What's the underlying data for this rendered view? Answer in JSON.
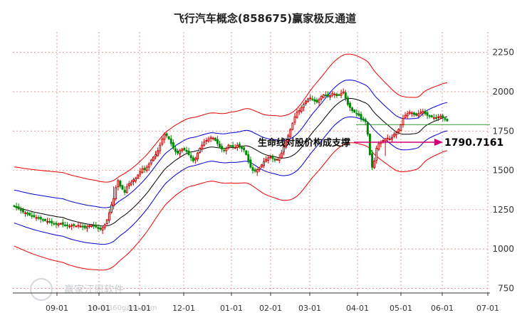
{
  "chart_data": {
    "type": "candlestick",
    "title": "飞行汽车概念(858675)赢家极反通道",
    "y_ticks": [
      2250,
      2000,
      1750,
      1500,
      1250,
      1000,
      750
    ],
    "ylim": [
      720,
      2380
    ],
    "x_ticks": [
      "09-01",
      "10-01",
      "11-01",
      "12-01",
      "01-01",
      "02-01",
      "03-01",
      "04-01",
      "05-01",
      "06-01",
      "07-01"
    ],
    "grid": "dashed",
    "annotation": {
      "text": "生命线对股价构成支撑",
      "value_label": "1790.7161",
      "value": 1790.7161
    },
    "series": [
      {
        "key": "close",
        "color": "#d00000",
        "down_color": "#008800",
        "values": [
          1270,
          1262,
          1255,
          1245,
          1235,
          1230,
          1222,
          1215,
          1210,
          1205,
          1200,
          1195,
          1190,
          1185,
          1180,
          1175,
          1170,
          1165,
          1160,
          1158,
          1160,
          1162,
          1155,
          1150,
          1148,
          1145,
          1150,
          1148,
          1145,
          1150,
          1145,
          1140,
          1135,
          1142,
          1148,
          1150,
          1145,
          1140,
          1130,
          1125,
          1135,
          1155,
          1185,
          1230,
          1280,
          1320,
          1390,
          1435,
          1400,
          1380,
          1360,
          1395,
          1415,
          1425,
          1440,
          1450,
          1470,
          1490,
          1510,
          1505,
          1520,
          1540,
          1565,
          1585,
          1600,
          1625,
          1660,
          1700,
          1730,
          1720,
          1700,
          1670,
          1640,
          1620,
          1610,
          1625,
          1635,
          1630,
          1620,
          1600,
          1580,
          1560,
          1575,
          1610,
          1640,
          1660,
          1680,
          1690,
          1700,
          1710,
          1705,
          1690,
          1670,
          1650,
          1635,
          1625,
          1640,
          1660,
          1655,
          1650,
          1645,
          1660,
          1650,
          1640,
          1630,
          1600,
          1560,
          1520,
          1500,
          1495,
          1505,
          1515,
          1535,
          1555,
          1570,
          1580,
          1585,
          1575,
          1565,
          1570,
          1580,
          1610,
          1650,
          1690,
          1720,
          1760,
          1800,
          1840,
          1870,
          1880,
          1900,
          1920,
          1940,
          1955,
          1960,
          1950,
          1940,
          1935,
          1950,
          1970,
          1980,
          1975,
          1970,
          1975,
          1990,
          1985,
          1975,
          1980,
          1990,
          2000,
          1960,
          1920,
          1900,
          1880,
          1870,
          1860,
          1850,
          1830,
          1820,
          1810,
          1730,
          1600,
          1520,
          1560,
          1640,
          1670,
          1680,
          1690,
          1700,
          1705,
          1700,
          1710,
          1730,
          1740,
          1760,
          1790,
          1830,
          1850,
          1860,
          1870,
          1865,
          1855,
          1850,
          1860,
          1870,
          1875,
          1860,
          1850,
          1845,
          1840,
          1835,
          1830,
          1840,
          1845,
          1835,
          1825,
          1815
        ]
      },
      {
        "key": "lifeline",
        "color": "#000000"
      },
      {
        "key": "inner_upper",
        "color": "#0000dd"
      },
      {
        "key": "inner_lower",
        "color": "#0000dd"
      },
      {
        "key": "outer_upper",
        "color": "#ee0000"
      },
      {
        "key": "outer_lower",
        "color": "#ee0000"
      }
    ],
    "colors": {
      "up": "#d00000",
      "down": "#008800",
      "annotation_arrow": "#d0007a"
    }
  },
  "watermark": {
    "name": "赢家江恩软件",
    "url": "www.360gann.com"
  }
}
